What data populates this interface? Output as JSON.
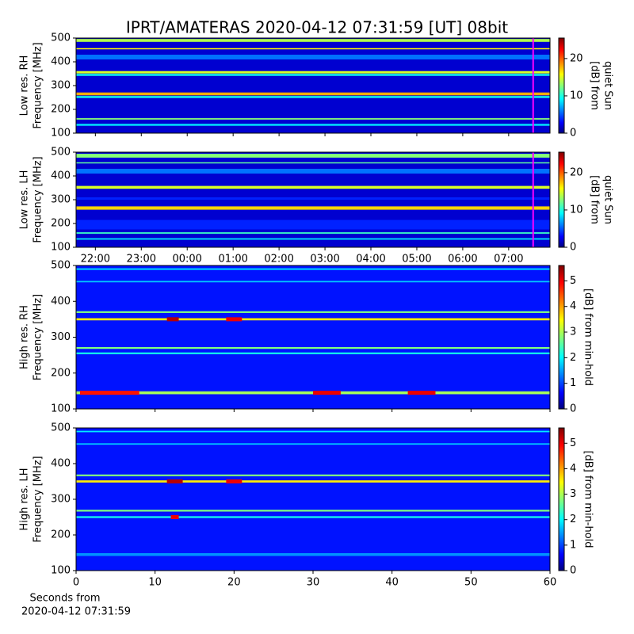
{
  "title": "IPRT/AMATERAS 2020-04-12 07:31:59 [UT]   08bit",
  "chart_data": [
    {
      "type": "heatmap",
      "ylabel": [
        "Low res. RH",
        "Frequency [MHz]"
      ],
      "sharex": 1,
      "ylim": [
        100,
        500
      ],
      "yticks": [
        100,
        200,
        300,
        400,
        500
      ],
      "background_level": 2,
      "bands": [
        {
          "freq": 490,
          "width": 12,
          "level": 14
        },
        {
          "freq": 455,
          "width": 5,
          "level": 16
        },
        {
          "freq": 420,
          "width": 20,
          "level": 6
        },
        {
          "freq": 356,
          "width": 10,
          "level": 15
        },
        {
          "freq": 345,
          "width": 8,
          "level": 10
        },
        {
          "freq": 265,
          "width": 12,
          "level": 18
        },
        {
          "freq": 252,
          "width": 8,
          "level": 10
        },
        {
          "freq": 160,
          "width": 6,
          "level": 13
        },
        {
          "freq": 135,
          "width": 8,
          "level": 9
        }
      ],
      "marker_x": 31.533,
      "marker_color": "#ff00ff",
      "zlim": [
        0,
        25.5
      ],
      "zticks": [
        0,
        10,
        20
      ],
      "zlabel": [
        "[dB] from",
        "quiet Sun"
      ]
    },
    {
      "type": "heatmap",
      "ylabel": [
        "Low res. LH",
        "Frequency [MHz]"
      ],
      "xlim": [
        21.58,
        31.9
      ],
      "xticks": [
        {
          "value": 22,
          "label": "22:00"
        },
        {
          "value": 23,
          "label": "23:00"
        },
        {
          "value": 24,
          "label": "00:00"
        },
        {
          "value": 25,
          "label": "01:00"
        },
        {
          "value": 26,
          "label": "02:00"
        },
        {
          "value": 27,
          "label": "03:00"
        },
        {
          "value": 28,
          "label": "04:00"
        },
        {
          "value": 29,
          "label": "05:00"
        },
        {
          "value": 30,
          "label": "06:00"
        },
        {
          "value": 31,
          "label": "07:00"
        }
      ],
      "ylim": [
        100,
        500
      ],
      "yticks": [
        100,
        200,
        300,
        400,
        500
      ],
      "background_level": 2,
      "bands": [
        {
          "freq": 485,
          "width": 16,
          "level": 13
        },
        {
          "freq": 455,
          "width": 5,
          "level": 12
        },
        {
          "freq": 420,
          "width": 20,
          "level": 6
        },
        {
          "freq": 352,
          "width": 12,
          "level": 15
        },
        {
          "freq": 305,
          "width": 10,
          "level": 4
        },
        {
          "freq": 265,
          "width": 14,
          "level": 17
        },
        {
          "freq": 195,
          "width": 40,
          "level": 4
        },
        {
          "freq": 160,
          "width": 6,
          "level": 11
        },
        {
          "freq": 135,
          "width": 6,
          "level": 9
        }
      ],
      "marker_x": 31.533,
      "marker_color": "#ff00ff",
      "zlim": [
        0,
        25.5
      ],
      "zticks": [
        0,
        10,
        20
      ],
      "zlabel": [
        "[dB] from",
        "quiet Sun"
      ]
    },
    {
      "type": "heatmap",
      "ylabel": [
        "High res. RH",
        "Frequency [MHz]"
      ],
      "sharex": 3,
      "ylim": [
        100,
        500
      ],
      "yticks": [
        200,
        300,
        400,
        500,
        100
      ],
      "background_level": 0.8,
      "bands": [
        {
          "freq": 490,
          "width": 4,
          "level": 2
        },
        {
          "freq": 455,
          "width": 4,
          "level": 1.8
        },
        {
          "freq": 370,
          "width": 5,
          "level": 2.8
        },
        {
          "freq": 350,
          "width": 6,
          "level": 3.6
        },
        {
          "freq": 270,
          "width": 5,
          "level": 2.8
        },
        {
          "freq": 255,
          "width": 5,
          "level": 2.2
        },
        {
          "freq": 145,
          "width": 8,
          "level": 3
        }
      ],
      "bursts": [
        {
          "x0": 0.5,
          "x1": 8,
          "freq": 145,
          "level": 4.8
        },
        {
          "x0": 30,
          "x1": 33.5,
          "freq": 145,
          "level": 5
        },
        {
          "x0": 42,
          "x1": 45.5,
          "freq": 145,
          "level": 5
        },
        {
          "x0": 11.5,
          "x1": 13,
          "freq": 350,
          "level": 5.3
        },
        {
          "x0": 19,
          "x1": 21,
          "freq": 350,
          "level": 5
        }
      ],
      "zlim": [
        0,
        5.6
      ],
      "zticks": [
        0,
        1,
        2,
        3,
        4,
        5
      ],
      "zlabel": [
        "[dB] from min-hold"
      ]
    },
    {
      "type": "heatmap",
      "ylabel": [
        "High res. LH",
        "Frequency [MHz]"
      ],
      "xlabel": [
        "Seconds from",
        "2020-04-12 07:31:59"
      ],
      "xlim": [
        0,
        60
      ],
      "xticks": [
        0,
        10,
        20,
        30,
        40,
        50,
        60
      ],
      "ylim": [
        100,
        500
      ],
      "yticks": [
        100,
        200,
        300,
        400,
        500
      ],
      "background_level": 0.8,
      "bands": [
        {
          "freq": 490,
          "width": 4,
          "level": 2
        },
        {
          "freq": 455,
          "width": 4,
          "level": 1.8
        },
        {
          "freq": 367,
          "width": 5,
          "level": 2.8
        },
        {
          "freq": 350,
          "width": 6,
          "level": 3.6
        },
        {
          "freq": 268,
          "width": 5,
          "level": 2.8
        },
        {
          "freq": 250,
          "width": 5,
          "level": 2.2
        },
        {
          "freq": 145,
          "width": 8,
          "level": 1.5
        }
      ],
      "bursts": [
        {
          "x0": 11.5,
          "x1": 13.5,
          "freq": 350,
          "level": 5.3
        },
        {
          "x0": 19,
          "x1": 21,
          "freq": 350,
          "level": 5
        },
        {
          "x0": 12,
          "x1": 13,
          "freq": 250,
          "level": 5
        }
      ],
      "zlim": [
        0,
        5.6
      ],
      "zticks": [
        0,
        1,
        2,
        3,
        4,
        5
      ],
      "zlabel": [
        "[dB] from min-hold"
      ]
    }
  ]
}
